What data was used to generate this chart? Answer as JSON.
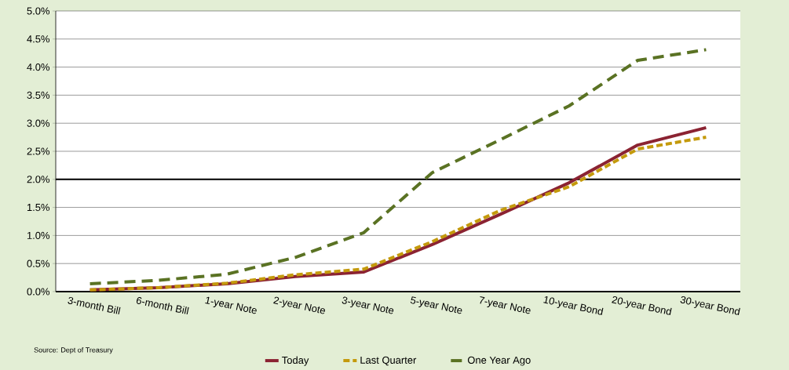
{
  "chart_data": {
    "type": "line",
    "categories": [
      "3-month Bill",
      "6-month Bill",
      "1-year Note",
      "2-year Note",
      "3-year Note",
      "5-year Note",
      "7-year Note",
      "10-year Bond",
      "20-year Bond",
      "30-year Bond"
    ],
    "series": [
      {
        "name": "Today",
        "color": "#8b2332",
        "line_style": "solid",
        "values": [
          0.03,
          0.07,
          0.14,
          0.27,
          0.35,
          0.84,
          1.38,
          1.94,
          2.61,
          2.92
        ]
      },
      {
        "name": "Last Quarter",
        "color": "#c49a0c",
        "line_style": "dashed",
        "values": [
          0.03,
          0.07,
          0.15,
          0.3,
          0.4,
          0.89,
          1.45,
          1.87,
          2.54,
          2.75
        ]
      },
      {
        "name": "One Year Ago",
        "color": "#5a7223",
        "line_style": "dashed",
        "values": [
          0.14,
          0.2,
          0.31,
          0.61,
          1.05,
          2.12,
          2.71,
          3.31,
          4.12,
          4.31
        ]
      }
    ],
    "ylim": [
      0,
      5
    ],
    "yticks": [
      {
        "value": 0,
        "label": "0.0%"
      },
      {
        "value": 0.5,
        "label": "0.5%"
      },
      {
        "value": 1,
        "label": "1.0%"
      },
      {
        "value": 1.5,
        "label": "1.5%"
      },
      {
        "value": 2,
        "label": "2.0%"
      },
      {
        "value": 2.5,
        "label": "2.5%"
      },
      {
        "value": 3,
        "label": "3.0%"
      },
      {
        "value": 3.5,
        "label": "3.5%"
      },
      {
        "value": 4,
        "label": "4.0%"
      },
      {
        "value": 4.5,
        "label": "4.5%"
      },
      {
        "value": 5,
        "label": "5.0%"
      }
    ],
    "ref_lines": [
      {
        "axis": "y",
        "value": 2,
        "color": "#000000"
      }
    ],
    "grid": "y",
    "legend": "bottom",
    "marker": "none",
    "annotations": [
      "Source: Dept of Treasury"
    ]
  }
}
